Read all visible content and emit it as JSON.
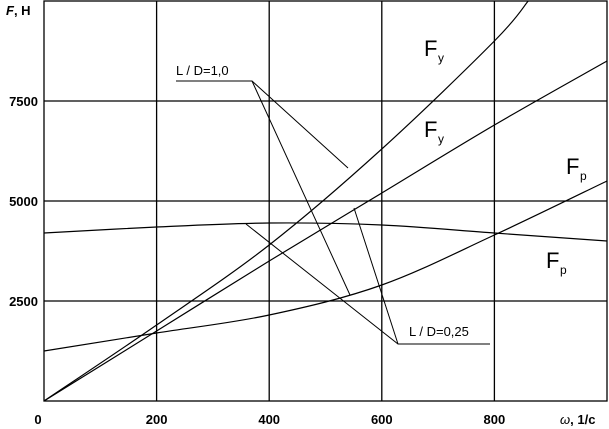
{
  "chart_data": {
    "type": "line",
    "xlabel": {
      "var": "ω",
      "unit": ", 1/c"
    },
    "ylabel": {
      "var": "F",
      "unit": ", H"
    },
    "xlim": [
      0,
      1000
    ],
    "ylim": [
      0,
      10000
    ],
    "x_ticks": [
      0,
      200,
      400,
      600,
      800
    ],
    "y_ticks": [
      2500,
      5000,
      7500
    ],
    "grid": true,
    "series": [
      {
        "name": {
          "main": "F",
          "sub": "y"
        },
        "x": [
          0,
          200,
          400,
          600,
          800,
          860
        ],
        "y": [
          0,
          1900,
          3900,
          6300,
          9000,
          10000
        ]
      },
      {
        "name": {
          "main": "F",
          "sub": "y"
        },
        "x": [
          0,
          200,
          400,
          600,
          800,
          1000
        ],
        "y": [
          0,
          1750,
          3500,
          5200,
          6900,
          8500
        ]
      },
      {
        "name": {
          "main": "F",
          "sub": "p"
        },
        "x": [
          0,
          200,
          400,
          600,
          800,
          1000
        ],
        "y": [
          4200,
          4350,
          4450,
          4400,
          4200,
          4000
        ]
      },
      {
        "name": {
          "main": "F",
          "sub": "p"
        },
        "x": [
          0,
          200,
          400,
          600,
          800,
          1000
        ],
        "y": [
          1250,
          1700,
          2150,
          2900,
          4150,
          5500
        ]
      }
    ],
    "annotations": [
      {
        "text": "L / D=1,0"
      },
      {
        "text": "L / D=0,25"
      }
    ]
  }
}
